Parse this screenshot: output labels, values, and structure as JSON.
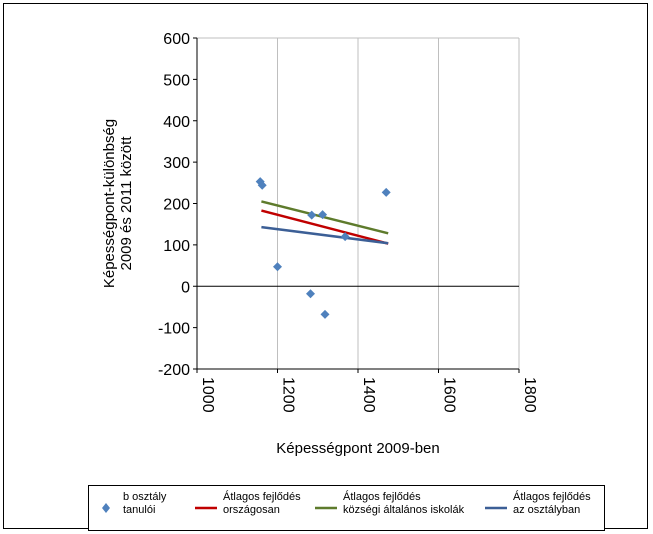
{
  "chart_data": {
    "type": "scatter",
    "xlabel": "Képességpont 2009-ben",
    "ylabel": [
      "Képességpont-különbség",
      "2009 és 2011 között"
    ],
    "xlim": [
      1000,
      1800
    ],
    "ylim": [
      -200,
      600
    ],
    "xticks": [
      "1000",
      "1200",
      "1400",
      "1600",
      "1800"
    ],
    "yticks": [
      "600",
      "500",
      "400",
      "300",
      "200",
      "100",
      "0",
      "-100",
      "-200"
    ],
    "grid": "vertical",
    "legend_position": "bottom",
    "points": {
      "name": "b osztály tanulói",
      "color": "#4f81bd",
      "data": [
        {
          "x": 1157,
          "y": 253
        },
        {
          "x": 1162,
          "y": 244
        },
        {
          "x": 1200,
          "y": 47
        },
        {
          "x": 1282,
          "y": -18
        },
        {
          "x": 1285,
          "y": 172
        },
        {
          "x": 1312,
          "y": 173
        },
        {
          "x": 1318,
          "y": -68
        },
        {
          "x": 1368,
          "y": 120
        },
        {
          "x": 1470,
          "y": 227
        }
      ]
    },
    "lines": [
      {
        "name": "Átlagos fejlődés országosan",
        "color": "#c00000",
        "x": [
          1160,
          1475
        ],
        "y": [
          183,
          103
        ]
      },
      {
        "name": "Átlagos fejlődés községi általános iskolák",
        "color": "#5e7b2c",
        "x": [
          1160,
          1475
        ],
        "y": [
          205,
          128
        ]
      },
      {
        "name": "Átlagos fejlődés az osztályban",
        "color": "#3c5f96",
        "x": [
          1160,
          1475
        ],
        "y": [
          143,
          104
        ]
      }
    ]
  },
  "legend": [
    {
      "line1": "b osztály",
      "line2": "tanulói",
      "kind": "marker",
      "color": "#4f81bd"
    },
    {
      "line1": "Átlagos fejlődés",
      "line2": "országosan",
      "kind": "line",
      "color": "#c00000"
    },
    {
      "line1": "Átlagos fejlődés",
      "line2": "községi általános iskolák",
      "kind": "line",
      "color": "#5e7b2c"
    },
    {
      "line1": "Átlagos fejlődés",
      "line2": "az osztályban",
      "kind": "line",
      "color": "#3c5f96"
    }
  ]
}
